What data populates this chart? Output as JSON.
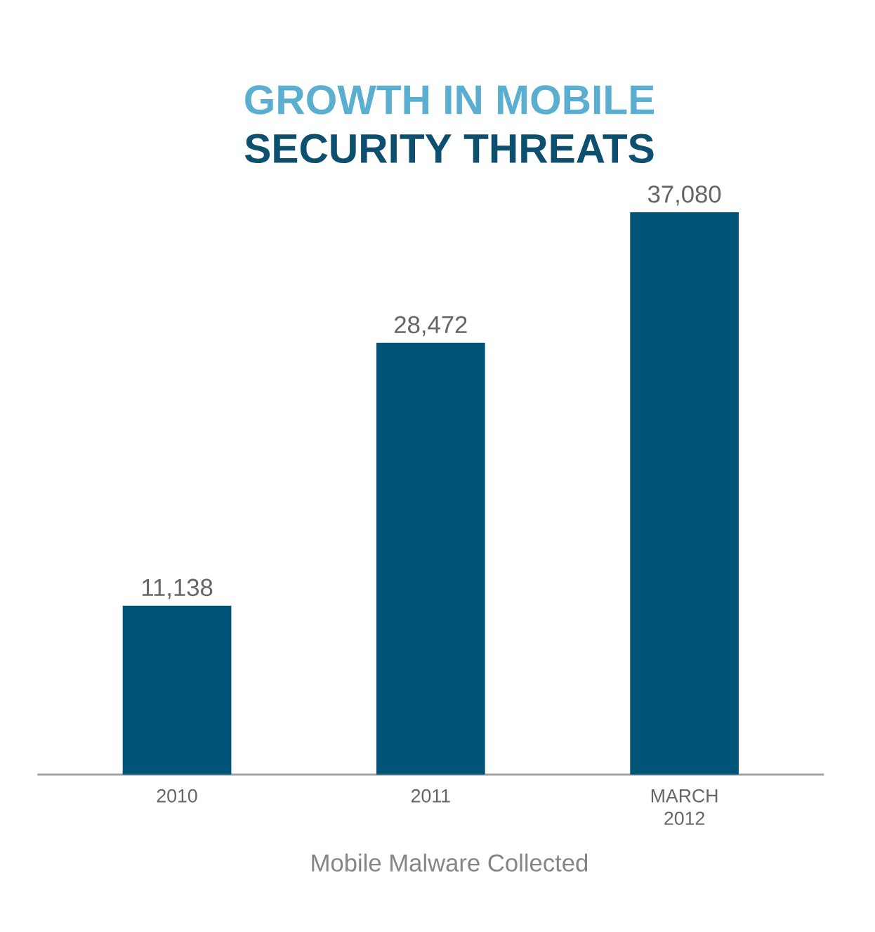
{
  "chart_data": {
    "type": "bar",
    "title": "GROWTH IN MOBILE",
    "subtitle": "SECURITY THREATS",
    "categories": [
      "2010",
      "2011",
      "MARCH 2012"
    ],
    "values": [
      11138,
      28472,
      37080
    ],
    "value_labels": [
      "11,138",
      "28,472",
      "37,080"
    ],
    "color": "#005478",
    "annotations": [
      "Mobile Malware Collected"
    ]
  }
}
